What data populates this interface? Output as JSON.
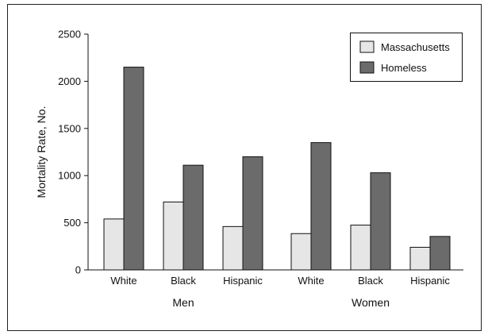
{
  "chart_data": {
    "type": "bar",
    "ylabel": "Mortality Rate, No.",
    "ylim": [
      0,
      2500
    ],
    "yticks": [
      0,
      500,
      1000,
      1500,
      2000,
      2500
    ],
    "grid": false,
    "legend_position": "top-right",
    "categories": [
      "White",
      "Black",
      "Hispanic",
      "White",
      "Black",
      "Hispanic"
    ],
    "groups": [
      {
        "label": "Men",
        "categories": [
          "White",
          "Black",
          "Hispanic"
        ]
      },
      {
        "label": "Women",
        "categories": [
          "White",
          "Black",
          "Hispanic"
        ]
      }
    ],
    "series": [
      {
        "name": "Massachusetts",
        "color": "#e6e6e6",
        "values": [
          540,
          720,
          460,
          385,
          475,
          240
        ]
      },
      {
        "name": "Homeless",
        "color": "#6b6b6b",
        "values": [
          2150,
          1110,
          1200,
          1350,
          1030,
          355
        ]
      }
    ]
  }
}
